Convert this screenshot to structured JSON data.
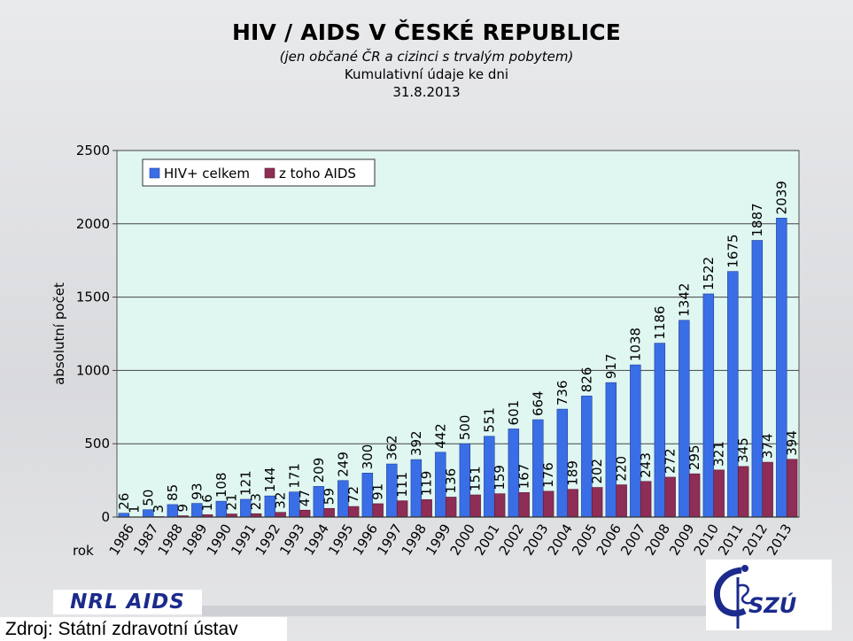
{
  "header": {
    "title": "HIV / AIDS V ČESKÉ REPUBLICE",
    "subtitle": "(jen občané ČR a cizinci s trvalým pobytem)",
    "line3": "Kumulativní údaje ke dni",
    "line4": "31.8.2013"
  },
  "footer": {
    "nrl_logo": "NRL AIDS",
    "source": "Zdroj: Státní zdravotní ústav",
    "szu_logo": "SZÚ"
  },
  "colors": {
    "hiv": "#3a6ee6",
    "aids": "#8e2d55",
    "plot_bg": "#dff6f1"
  },
  "chart_data": {
    "type": "bar",
    "title": "HIV / AIDS V ČESKÉ REPUBLICE",
    "ylabel": "absolutní počet",
    "xlabel": "rok",
    "ylim": [
      0,
      2500
    ],
    "yticks": [
      0,
      500,
      1000,
      1500,
      2000,
      2500
    ],
    "grid": true,
    "legend_position": "top-left",
    "categories": [
      "1986",
      "1987",
      "1988",
      "1989",
      "1990",
      "1991",
      "1992",
      "1993",
      "1994",
      "1995",
      "1996",
      "1997",
      "1998",
      "1999",
      "2000",
      "2001",
      "2002",
      "2003",
      "2004",
      "2005",
      "2006",
      "2007",
      "2008",
      "2009",
      "2010",
      "2011",
      "2012",
      "2013"
    ],
    "series": [
      {
        "name": "HIV+ celkem",
        "values": [
          26,
          50,
          85,
          93,
          108,
          121,
          144,
          171,
          209,
          249,
          300,
          362,
          392,
          442,
          500,
          551,
          601,
          664,
          736,
          826,
          917,
          1038,
          1186,
          1342,
          1522,
          1675,
          1887,
          2039
        ]
      },
      {
        "name": "z toho AIDS",
        "values": [
          1,
          3,
          9,
          16,
          21,
          23,
          32,
          47,
          59,
          72,
          91,
          111,
          119,
          136,
          151,
          159,
          167,
          176,
          189,
          202,
          220,
          243,
          272,
          295,
          321,
          345,
          374,
          394
        ]
      }
    ]
  }
}
